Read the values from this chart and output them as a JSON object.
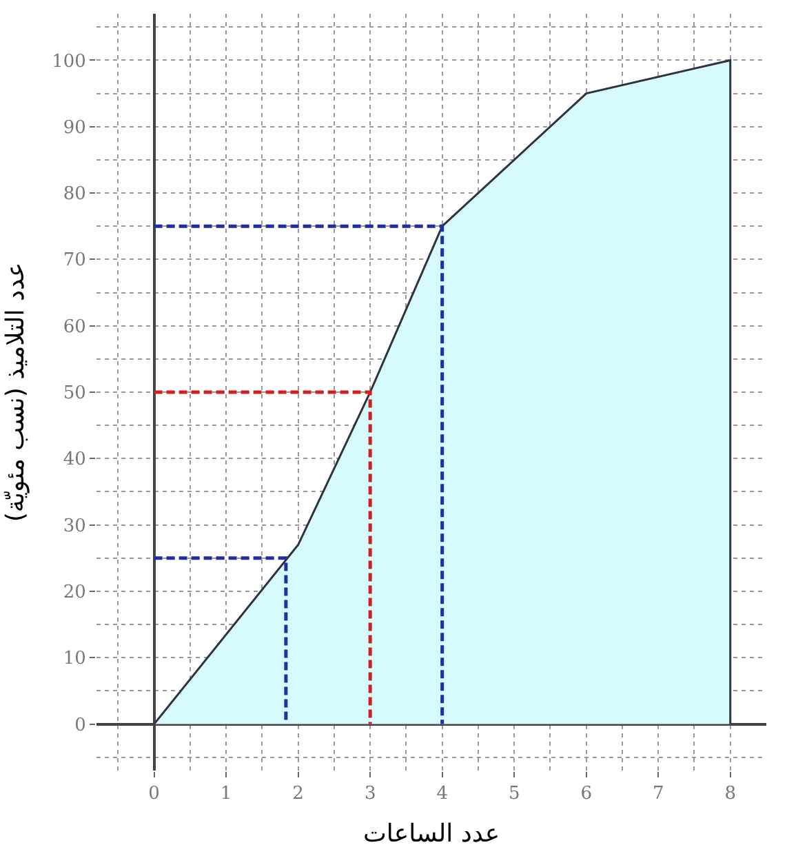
{
  "chart_data": {
    "type": "area",
    "xlabel": "عدد الساعات",
    "ylabel": "عدد التلاميذ (نسب مئويّة)",
    "xlim": [
      -0.8,
      8.5
    ],
    "ylim": [
      -7,
      107
    ],
    "xticks": [
      0,
      1,
      2,
      3,
      4,
      5,
      6,
      7,
      8
    ],
    "yticks": [
      0,
      10,
      20,
      30,
      40,
      50,
      60,
      70,
      80,
      90,
      100
    ],
    "grid": true,
    "series": [
      {
        "color": "#d6fafd",
        "x": [
          0,
          2,
          3,
          4,
          6,
          8
        ],
        "values": [
          0,
          27,
          50,
          75,
          95,
          100
        ]
      },
      {
        "type": "line",
        "line_style": "dashed",
        "color": "#1f2fa0",
        "x": [
          0,
          1.83,
          1.83
        ],
        "values": [
          25,
          25,
          0
        ]
      },
      {
        "type": "line",
        "line_style": "dashed",
        "color": "#d02020",
        "x": [
          0,
          3,
          3
        ],
        "values": [
          50,
          50,
          0
        ]
      },
      {
        "type": "line",
        "line_style": "dashed",
        "color": "#1f2fa0",
        "x": [
          0,
          4,
          4
        ],
        "values": [
          75,
          75,
          0
        ]
      }
    ]
  }
}
